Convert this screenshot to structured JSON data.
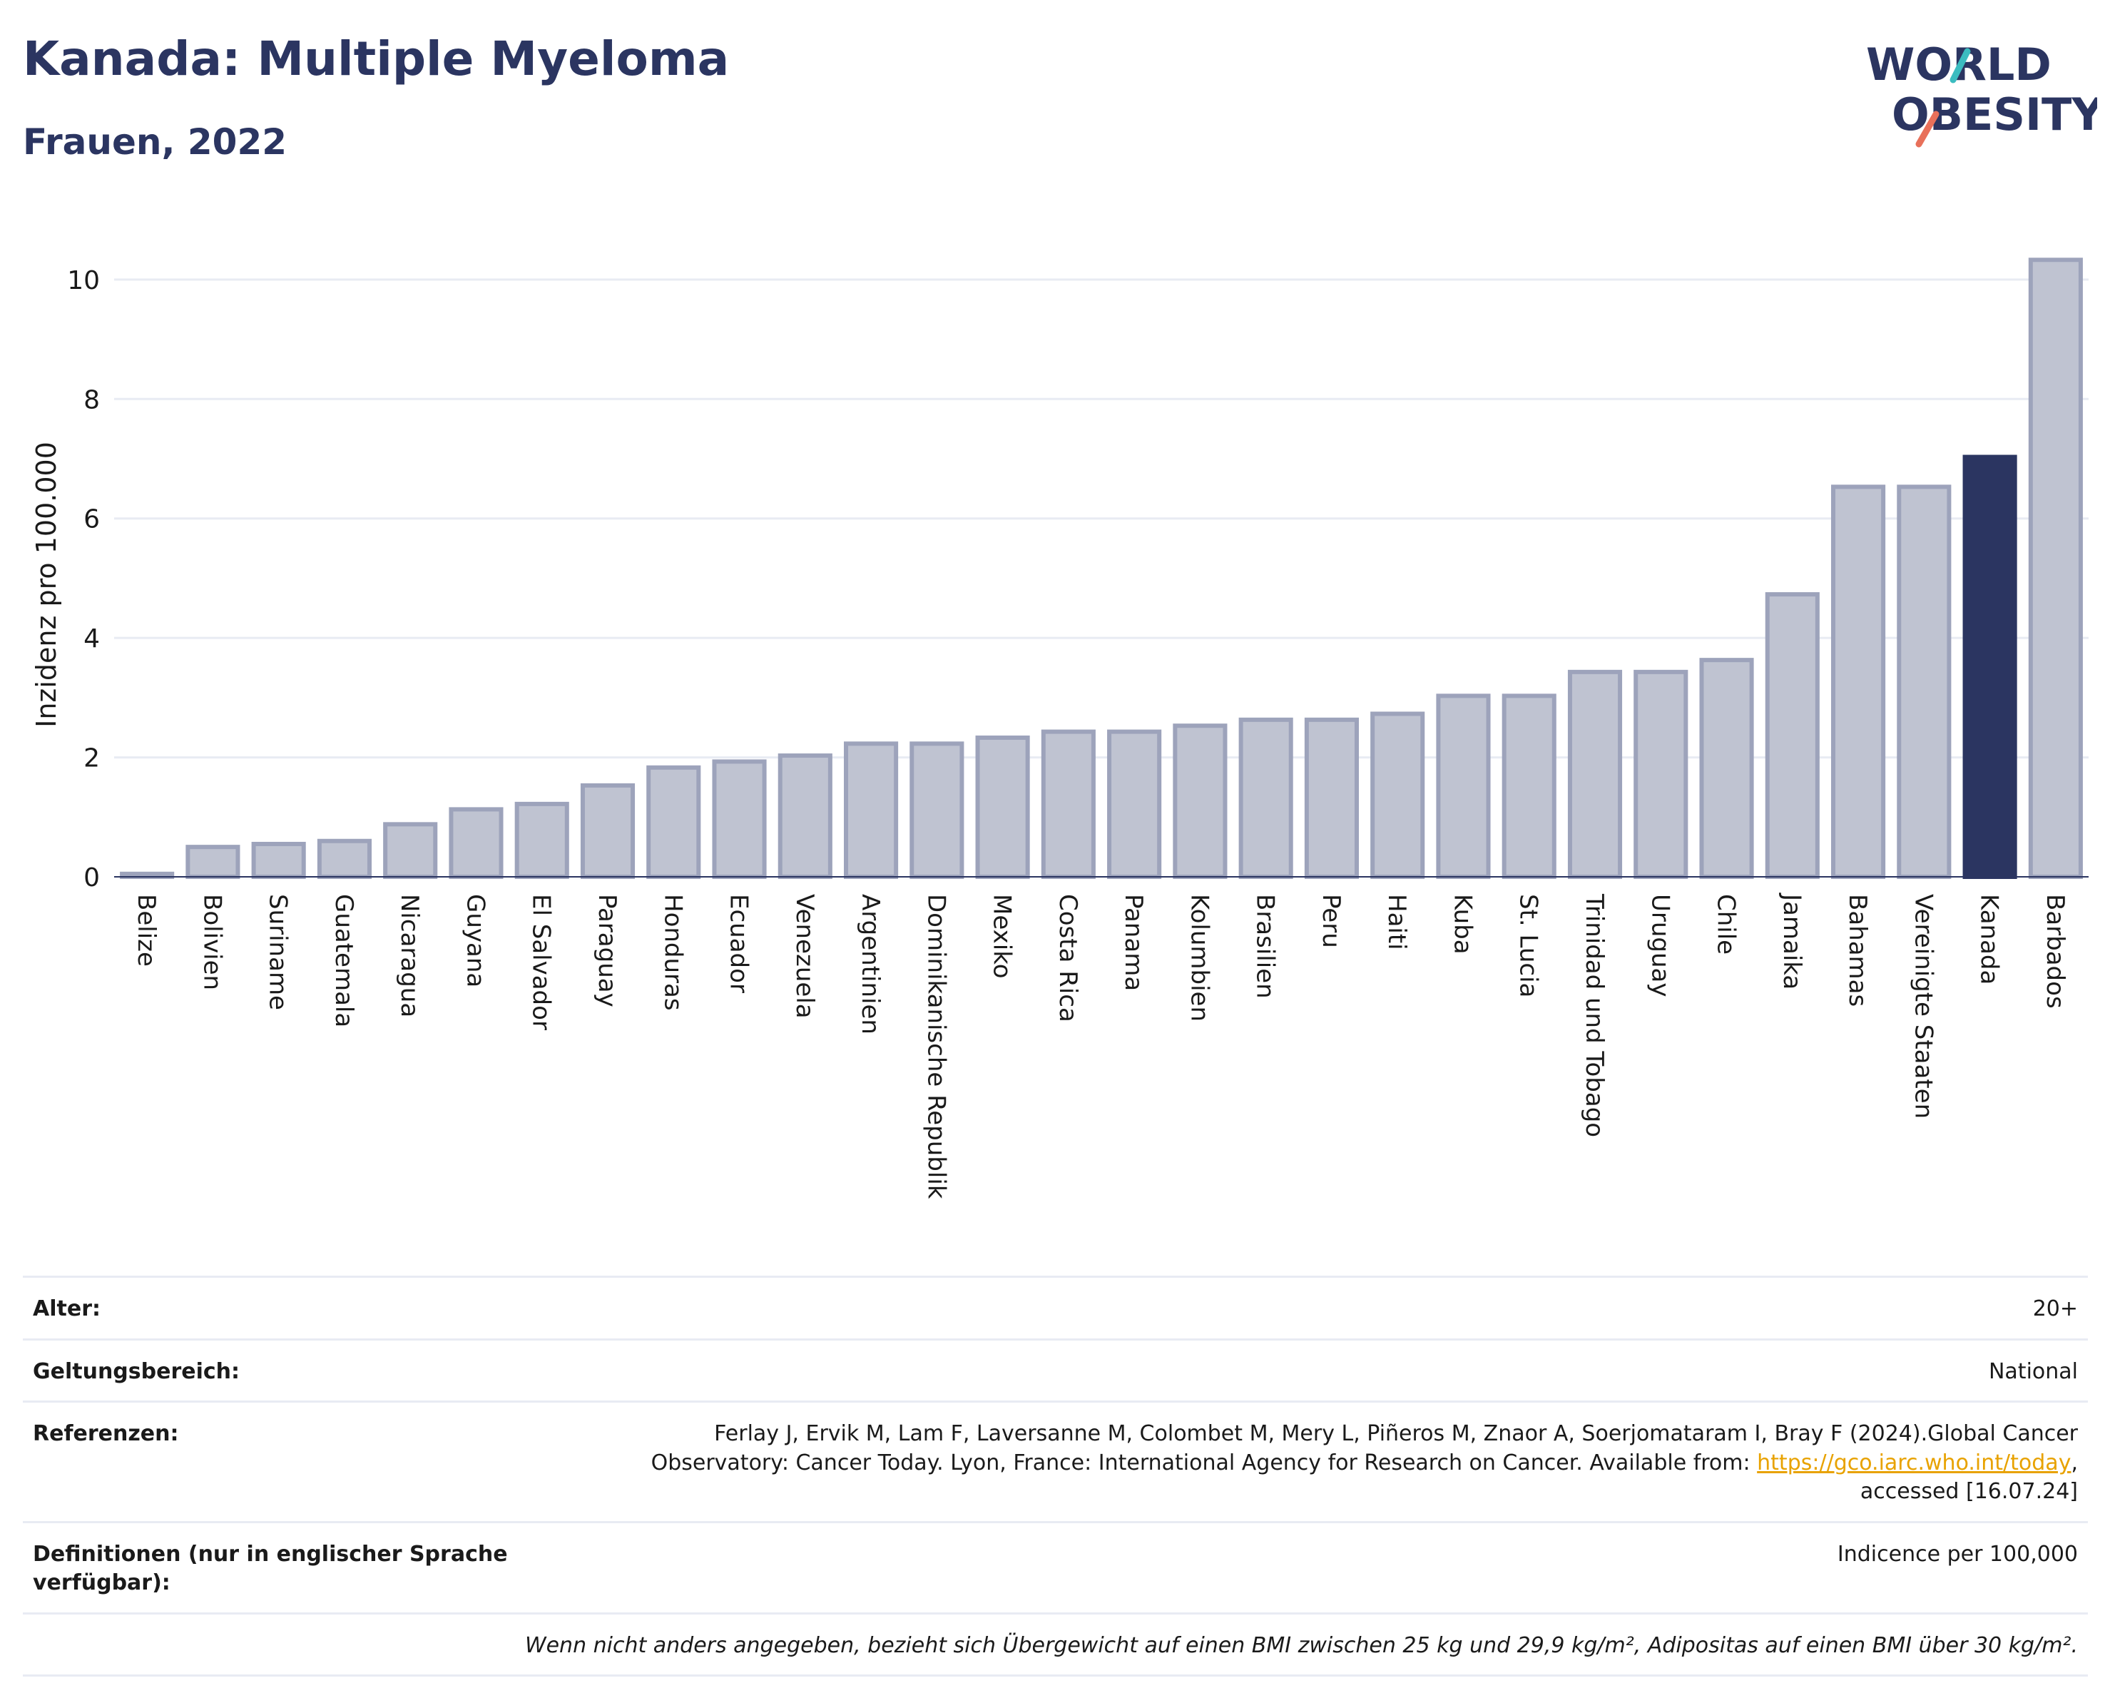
{
  "header": {
    "title": "Kanada: Multiple Myeloma",
    "subtitle": "Frauen, 2022"
  },
  "logo": {
    "line1": "WORLD",
    "line2": "OBESITY",
    "name": "world-obesity-logo"
  },
  "colors": {
    "highlight": "#2b3561",
    "bar": "#bfc3d1",
    "bar_stroke": "#9da3bb",
    "grid": "#e8ebf3",
    "text": "#2b3561"
  },
  "chart_data": {
    "type": "bar",
    "ylabel": "Inzidenz pro 100.000",
    "ylim": [
      0,
      10.5
    ],
    "yticks": [
      0,
      2,
      4,
      6,
      8,
      10
    ],
    "grid": true,
    "highlight": "Kanada",
    "categories": [
      "Belize",
      "Bolivien",
      "Suriname",
      "Guatemala",
      "Nicaragua",
      "Guyana",
      "El Salvador",
      "Paraguay",
      "Honduras",
      "Ecuador",
      "Venezuela",
      "Argentinien",
      "Dominikanische Republik",
      "Mexiko",
      "Costa Rica",
      "Panama",
      "Kolumbien",
      "Brasilien",
      "Peru",
      "Haiti",
      "Kuba",
      "St. Lucia",
      "Trinidad und Tobago",
      "Uruguay",
      "Chile",
      "Jamaika",
      "Bahamas",
      "Vereinigte Staaten",
      "Kanada",
      "Barbados"
    ],
    "values": [
      0.05,
      0.5,
      0.55,
      0.6,
      0.88,
      1.13,
      1.22,
      1.53,
      1.83,
      1.93,
      2.03,
      2.23,
      2.23,
      2.33,
      2.43,
      2.43,
      2.53,
      2.63,
      2.63,
      2.73,
      3.03,
      3.03,
      3.43,
      3.43,
      3.63,
      4.73,
      6.53,
      6.53,
      7.03,
      10.33
    ]
  },
  "info": {
    "age_label": "Alter:",
    "age_value": "20+",
    "scope_label": "Geltungsbereich:",
    "scope_value": "National",
    "ref_label": "Referenzen:",
    "ref_text_1": "Ferlay J, Ervik M, Lam F, Laversanne M, Colombet M, Mery L, Piñeros M, Znaor A, Soerjomataram I, Bray F (2024).Global Cancer",
    "ref_text_2": "Observatory: Cancer Today. Lyon, France: International Agency for Research on Cancer. Available from: ",
    "ref_link": "https://gco.iarc.who.int/today",
    "ref_text_3": ",",
    "ref_text_4": "accessed [16.07.24]",
    "def_label": "Definitionen (nur in englischer Sprache verfügbar):",
    "def_value": "Indicence per 100,000",
    "note": "Wenn nicht anders angegeben, bezieht sich Übergewicht auf einen BMI zwischen 25 kg und 29,9 kg/m², Adipositas auf einen BMI über 30 kg/m²."
  }
}
